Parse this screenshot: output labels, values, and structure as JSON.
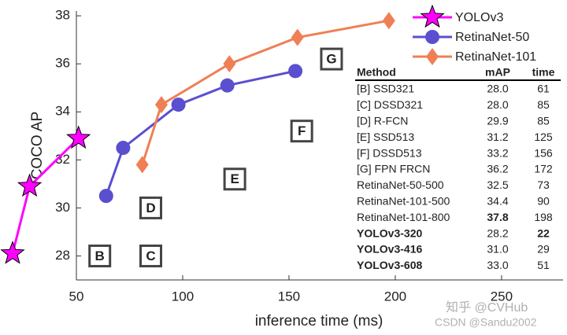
{
  "chart_data": {
    "type": "line",
    "x_label": "inference time (ms)",
    "y_label": "COCO AP",
    "xlim": [
      50,
      280
    ],
    "ylim": [
      27,
      38.2
    ],
    "xticks": [
      50,
      100,
      150,
      200,
      250
    ],
    "yticks": [
      28,
      30,
      32,
      34,
      36,
      38
    ],
    "legend": "upper right",
    "series": [
      {
        "name": "YOLOv3",
        "color": "#ff00ff",
        "marker": "star",
        "x": [
          20,
          28,
          51
        ],
        "values": [
          28.1,
          30.9,
          32.9
        ]
      },
      {
        "name": "RetinaNet-50",
        "color": "#5a4fcf",
        "marker": "circle",
        "x": [
          64,
          72,
          98,
          121,
          153
        ],
        "values": [
          30.5,
          32.5,
          34.3,
          35.1,
          35.7
        ]
      },
      {
        "name": "RetinaNet-101",
        "color": "#ef7f54",
        "marker": "diamond",
        "x": [
          81,
          90,
          122,
          154,
          197
        ],
        "values": [
          31.8,
          34.3,
          36.0,
          37.1,
          37.8
        ]
      }
    ],
    "annotations": [
      {
        "text": "B",
        "x": 61,
        "y": 28
      },
      {
        "text": "C",
        "x": 85,
        "y": 28
      },
      {
        "text": "D",
        "x": 85,
        "y": 30
      },
      {
        "text": "E",
        "x": 124.5,
        "y": 31.2
      },
      {
        "text": "F",
        "x": 156,
        "y": 33.2
      },
      {
        "text": "G",
        "x": 170,
        "y": 36.2
      }
    ]
  },
  "table": {
    "header": [
      "Method",
      "mAP",
      "time"
    ],
    "rows": [
      [
        "[B] SSD321",
        "28.0",
        "61"
      ],
      [
        "[C] DSSD321",
        "28.0",
        "85"
      ],
      [
        "[D] R-FCN",
        "29.9",
        "85"
      ],
      [
        "[E] SSD513",
        "31.2",
        "125"
      ],
      [
        "[F] DSSD513",
        "33.2",
        "156"
      ],
      [
        "[G] FPN FRCN",
        "36.2",
        "172"
      ],
      [
        "RetinaNet-50-500",
        "32.5",
        "73"
      ],
      [
        "RetinaNet-101-500",
        "34.4",
        "90"
      ],
      [
        "RetinaNet-101-800",
        "37.8",
        "198"
      ],
      [
        "YOLOv3-320",
        "28.2",
        "22"
      ],
      [
        "YOLOv3-416",
        "31.0",
        "29"
      ],
      [
        "YOLOv3-608",
        "33.0",
        "51"
      ]
    ],
    "bold_cells": [
      [
        8,
        1
      ],
      [
        9,
        0
      ],
      [
        9,
        2
      ],
      [
        10,
        0
      ],
      [
        11,
        0
      ]
    ]
  },
  "watermark": [
    "知乎 @CVHub",
    "CSDN @Sandu2002"
  ]
}
